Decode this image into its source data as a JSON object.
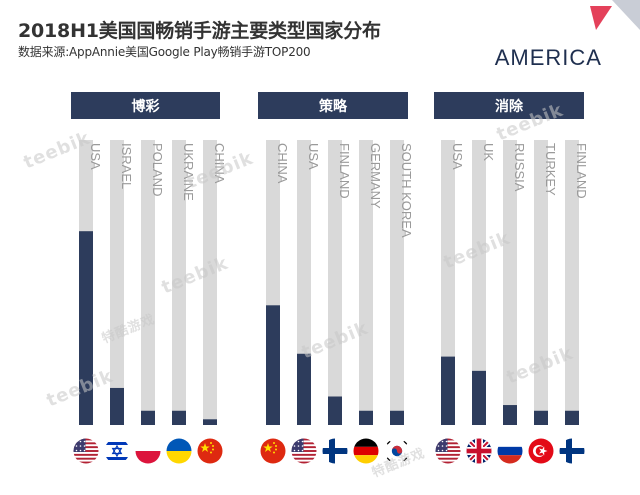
{
  "header": {
    "title": "2018H1美国国畅销手游主要类型国家分布",
    "subtitle": "数据来源:AppAnnie美国Google Play畅销手游TOP200",
    "region": "AMERICA"
  },
  "watermark": {
    "brand": "teebik",
    "brand_cn": "特酷游戏"
  },
  "colors": {
    "header_bg": "#2d3c5c",
    "bar_fill": "#2d3c5c",
    "bar_track": "#d9d9d9",
    "accent": "#e4415a"
  },
  "chart_data": [
    {
      "type": "bar",
      "title": "博彩",
      "categories": [
        "USA",
        "ISRAEL",
        "POLAND",
        "UKRAINE",
        "CHINA"
      ],
      "flags": [
        "us-flag",
        "israel-flag",
        "poland-flag",
        "ukraine-flag",
        "china-flag"
      ],
      "values": [
        68,
        13,
        5,
        5,
        2
      ],
      "ylim": [
        0,
        100
      ]
    },
    {
      "type": "bar",
      "title": "策略",
      "categories": [
        "CHINA",
        "USA",
        "FINLAND",
        "GERMANY",
        "SOUTH KOREA"
      ],
      "flags": [
        "china-flag",
        "us-flag",
        "finland-flag",
        "germany-flag",
        "korea-flag"
      ],
      "values": [
        42,
        25,
        10,
        5,
        5
      ],
      "ylim": [
        0,
        100
      ]
    },
    {
      "type": "bar",
      "title": "消除",
      "categories": [
        "USA",
        "UK",
        "RUSSIA",
        "TURKEY",
        "FINLAND"
      ],
      "flags": [
        "us-flag",
        "uk-flag",
        "russia-flag",
        "turkey-flag",
        "finland-flag"
      ],
      "values": [
        24,
        19,
        7,
        5,
        5
      ],
      "ylim": [
        0,
        100
      ]
    }
  ]
}
